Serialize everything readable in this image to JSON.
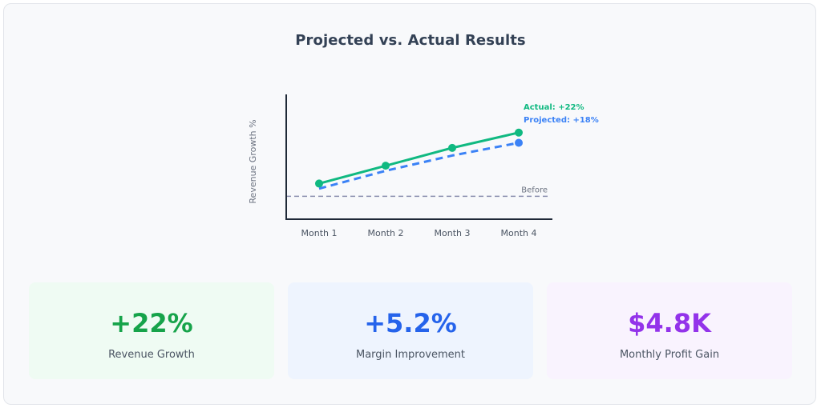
{
  "title": "Projected vs. Actual Results",
  "chart_data": {
    "type": "line",
    "categories": [
      "Month 1",
      "Month 2",
      "Month 3",
      "Month 4"
    ],
    "ylabel": "Revenue Growth %",
    "xlabel": "",
    "series": [
      {
        "name": "Actual",
        "label": "Actual: +22%",
        "values": [
          2,
          9,
          16,
          22
        ],
        "color": "#10b981",
        "style": "solid",
        "markers": "all"
      },
      {
        "name": "Projected",
        "label": "Projected: +18%",
        "values": [
          0,
          7,
          13,
          18
        ],
        "color": "#3b82f6",
        "style": "dashed",
        "markers": "last"
      }
    ],
    "baseline": {
      "label": "Before",
      "value": -3,
      "color": "#8b8fae",
      "style": "dashed"
    },
    "ylim": [
      -12,
      37
    ],
    "grid": false
  },
  "stats": [
    {
      "value": "+22%",
      "label": "Revenue Growth",
      "color": "#16a34a",
      "bg": "#effbf3"
    },
    {
      "value": "+5.2%",
      "label": "Margin Improvement",
      "color": "#2563eb",
      "bg": "#eef4fe"
    },
    {
      "value": "$4.8K",
      "label": "Monthly Profit Gain",
      "color": "#9333ea",
      "bg": "#f9f3fe"
    }
  ]
}
